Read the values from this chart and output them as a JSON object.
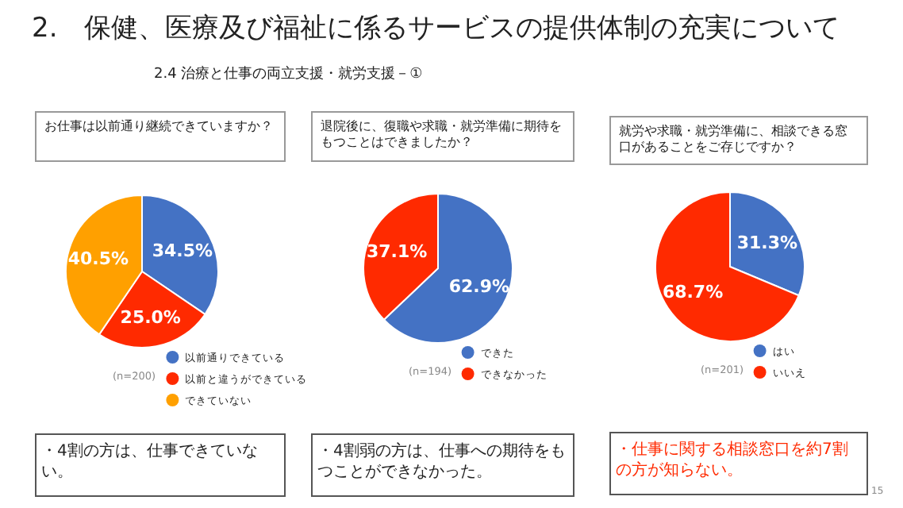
{
  "chart_data": [
    {
      "type": "other",
      "title": "2.　保健、医療及び福祉に係るサービスの提供体制の充実について",
      "subtitle": "2.4 治療と仕事の両立支援・就労支援－①",
      "annotations": [
        "15"
      ]
    },
    {
      "type": "pie",
      "title": "お仕事は以前通り継続できていますか？",
      "categories": [
        "以前通りできている",
        "以前と違うができている",
        "できていない"
      ],
      "values": [
        34.5,
        25.0,
        40.5
      ],
      "colors": [
        "#4472c4",
        "#ff2a00",
        "#ffa000"
      ],
      "value_labels": [
        "34.5%",
        "25.0%",
        "40.5%"
      ],
      "legend": "bottom right",
      "annotations": [
        "(n=200)",
        "・4割の方は、仕事できていない。"
      ]
    },
    {
      "type": "pie",
      "title": "退院後に、復職や求職・就労準備に期待をもつことはできましたか？",
      "categories": [
        "できた",
        "できなかった"
      ],
      "values": [
        62.9,
        37.1
      ],
      "colors": [
        "#4472c4",
        "#ff2a00"
      ],
      "value_labels": [
        "62.9%",
        "37.1%"
      ],
      "legend": "bottom right",
      "annotations": [
        "(n=194)",
        "・4割弱の方は、仕事への期待をもつことができなかった。"
      ]
    },
    {
      "type": "pie",
      "title": "就労や求職・就労準備に、相談できる窓口があることをご存じですか？",
      "categories": [
        "はい",
        "いいえ"
      ],
      "values": [
        31.3,
        68.7
      ],
      "colors": [
        "#4472c4",
        "#ff2a00"
      ],
      "value_labels": [
        "31.3%",
        "68.7%"
      ],
      "legend": "bottom right",
      "annotations": [
        "(n=201)",
        "・仕事に関する相談窓口を約7割の方が知らない。"
      ]
    }
  ]
}
